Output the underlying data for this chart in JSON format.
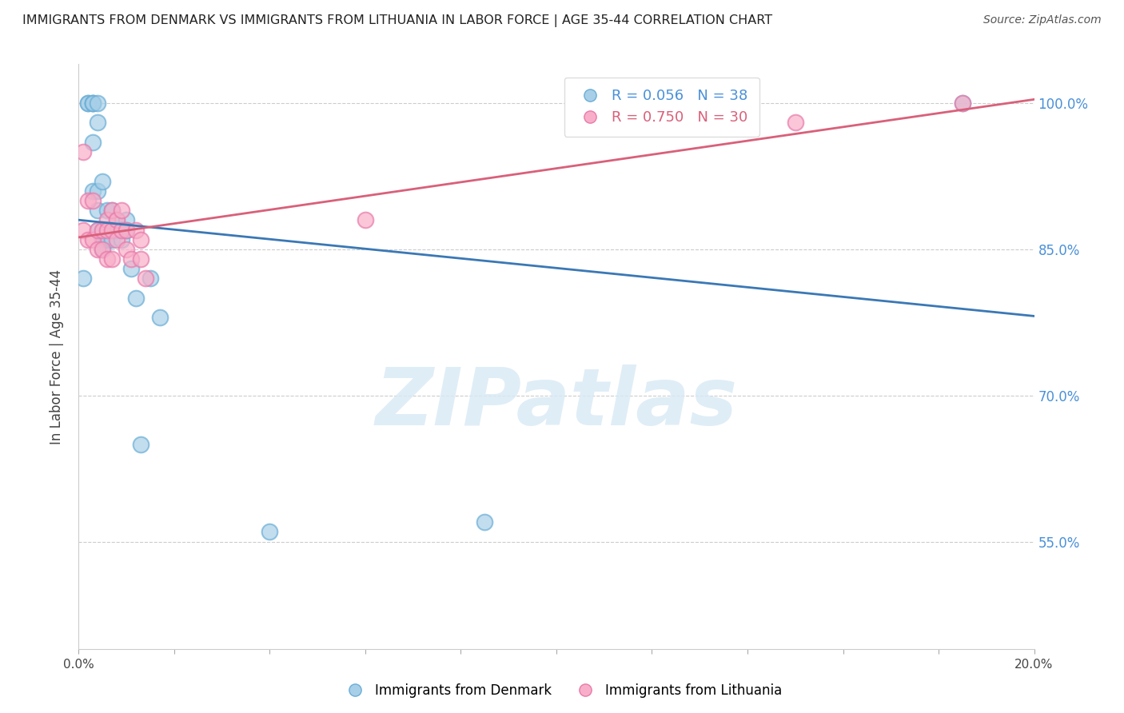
{
  "title": "IMMIGRANTS FROM DENMARK VS IMMIGRANTS FROM LITHUANIA IN LABOR FORCE | AGE 35-44 CORRELATION CHART",
  "source": "Source: ZipAtlas.com",
  "ylabel": "In Labor Force | Age 35-44",
  "xlim": [
    0.0,
    0.2
  ],
  "ylim": [
    0.44,
    1.04
  ],
  "yticks": [
    0.55,
    0.7,
    0.85,
    1.0
  ],
  "ytick_labels": [
    "55.0%",
    "70.0%",
    "85.0%",
    "100.0%"
  ],
  "xticks": [
    0.0,
    0.02,
    0.04,
    0.06,
    0.08,
    0.1,
    0.12,
    0.14,
    0.16,
    0.18,
    0.2
  ],
  "xtick_labels": [
    "0.0%",
    "",
    "",
    "",
    "",
    "",
    "",
    "",
    "",
    "",
    "20.0%"
  ],
  "denmark_color": "#a8cfe8",
  "denmark_edge_color": "#6aaed6",
  "lithuania_color": "#f8aec8",
  "lithuania_edge_color": "#e87aaa",
  "denmark_R": 0.056,
  "denmark_N": 38,
  "lithuania_R": 0.75,
  "lithuania_N": 30,
  "denmark_line_color": "#3a78b5",
  "lithuania_line_color": "#d9607a",
  "watermark_color": "#daeaf5",
  "denmark_x": [
    0.001,
    0.002,
    0.002,
    0.003,
    0.003,
    0.003,
    0.003,
    0.003,
    0.004,
    0.004,
    0.004,
    0.004,
    0.004,
    0.005,
    0.005,
    0.005,
    0.005,
    0.005,
    0.006,
    0.006,
    0.006,
    0.007,
    0.007,
    0.007,
    0.008,
    0.008,
    0.009,
    0.009,
    0.01,
    0.01,
    0.011,
    0.012,
    0.013,
    0.015,
    0.017,
    0.04,
    0.085,
    0.185
  ],
  "denmark_y": [
    0.82,
    1.0,
    1.0,
    1.0,
    1.0,
    1.0,
    0.96,
    0.91,
    1.0,
    0.98,
    0.91,
    0.89,
    0.87,
    0.92,
    0.87,
    0.86,
    0.86,
    0.85,
    0.89,
    0.87,
    0.86,
    0.89,
    0.87,
    0.86,
    0.88,
    0.87,
    0.86,
    0.87,
    0.88,
    0.87,
    0.83,
    0.8,
    0.65,
    0.82,
    0.78,
    0.56,
    0.57,
    1.0
  ],
  "lithuania_x": [
    0.001,
    0.001,
    0.002,
    0.002,
    0.003,
    0.003,
    0.004,
    0.004,
    0.005,
    0.005,
    0.006,
    0.006,
    0.006,
    0.007,
    0.007,
    0.007,
    0.008,
    0.008,
    0.009,
    0.009,
    0.01,
    0.01,
    0.011,
    0.012,
    0.013,
    0.013,
    0.014,
    0.06,
    0.15,
    0.185
  ],
  "lithuania_y": [
    0.95,
    0.87,
    0.9,
    0.86,
    0.9,
    0.86,
    0.87,
    0.85,
    0.87,
    0.85,
    0.88,
    0.87,
    0.84,
    0.89,
    0.87,
    0.84,
    0.88,
    0.86,
    0.89,
    0.87,
    0.87,
    0.85,
    0.84,
    0.87,
    0.86,
    0.84,
    0.82,
    0.88,
    0.98,
    1.0
  ]
}
